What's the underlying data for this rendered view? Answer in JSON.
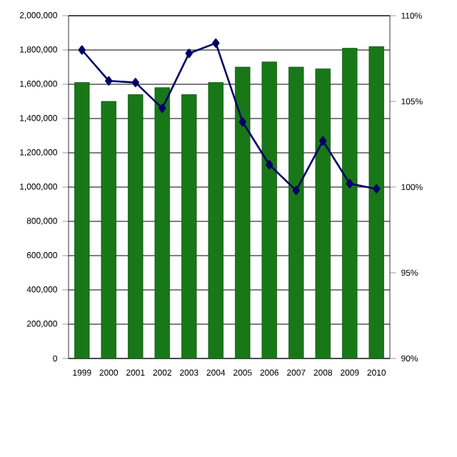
{
  "chart_data": {
    "type": "bar",
    "categories": [
      "1999",
      "2000",
      "2001",
      "2002",
      "2003",
      "2004",
      "2005",
      "2006",
      "2007",
      "2008",
      "2009",
      "2010"
    ],
    "series": [
      {
        "color": "#187818",
        "values": [
          1610000,
          1500000,
          1540000,
          1580000,
          1540000,
          1610000,
          1700000,
          1730000,
          1700000,
          1690000,
          1810000,
          1820000
        ]
      },
      {
        "type": "line",
        "axis": "y2",
        "color": "#000066",
        "marker": "diamond",
        "values": [
          108.0,
          106.2,
          106.1,
          104.6,
          107.8,
          108.4,
          103.8,
          101.3,
          99.8,
          102.7,
          100.2,
          99.9
        ]
      }
    ],
    "ylim": [
      0,
      2000000
    ],
    "yticks": [
      {
        "value": 0,
        "label": "0"
      },
      {
        "value": 200000,
        "label": "200,000"
      },
      {
        "value": 400000,
        "label": "400,000"
      },
      {
        "value": 600000,
        "label": "600,000"
      },
      {
        "value": 800000,
        "label": "800,000"
      },
      {
        "value": 1000000,
        "label": "1,000,000"
      },
      {
        "value": 1200000,
        "label": "1,200,000"
      },
      {
        "value": 1400000,
        "label": "1,400,000"
      },
      {
        "value": 1600000,
        "label": "1,600,000"
      },
      {
        "value": 1800000,
        "label": "1,800,000"
      },
      {
        "value": 2000000,
        "label": "2,000,000"
      }
    ],
    "y2lim": [
      90,
      110
    ],
    "y2ticks": [
      {
        "value": 90,
        "label": "90%"
      },
      {
        "value": 95,
        "label": "95%"
      },
      {
        "value": 100,
        "label": "100%"
      },
      {
        "value": 105,
        "label": "105%"
      },
      {
        "value": 110,
        "label": "110%"
      }
    ],
    "grid": "y"
  }
}
